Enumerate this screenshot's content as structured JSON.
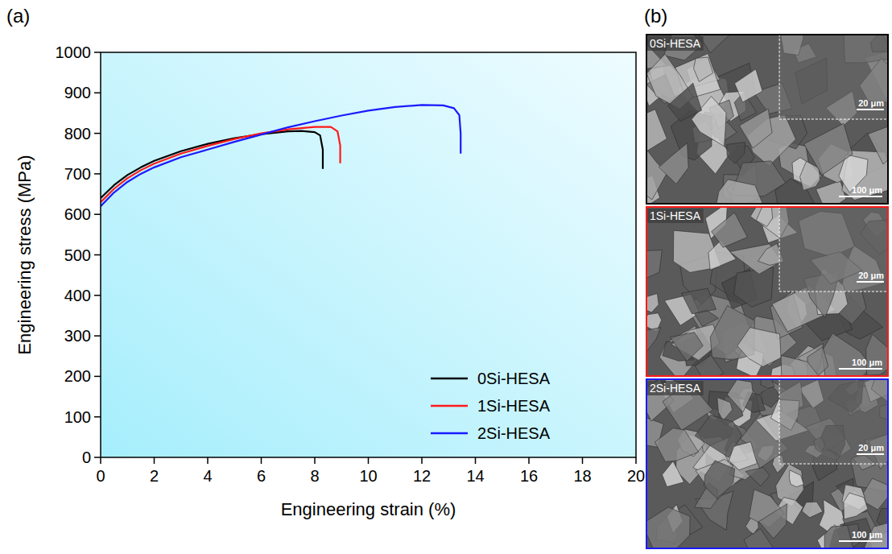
{
  "chart_data": {
    "type": "line",
    "panel_label": "(a)",
    "x_label": "Engineering strain (%)",
    "y_label": "Engineering stress (MPa)",
    "xlim": [
      0,
      20
    ],
    "ylim": [
      0,
      1000
    ],
    "xticks": [
      0,
      2,
      4,
      6,
      8,
      10,
      12,
      14,
      16,
      18,
      20
    ],
    "yticks": [
      0,
      100,
      200,
      300,
      400,
      500,
      600,
      700,
      800,
      900,
      1000
    ],
    "grid": false,
    "legend": "lower right",
    "series": [
      {
        "name": "0Si-HESA",
        "color": "#000000",
        "x": [
          0,
          0.5,
          1,
          1.5,
          2,
          3,
          4,
          5,
          6,
          7,
          7.5,
          8,
          8.2,
          8.3,
          8.3
        ],
        "values": [
          640,
          672,
          697,
          716,
          732,
          756,
          774,
          788,
          798,
          805,
          806,
          803,
          795,
          760,
          712
        ]
      },
      {
        "name": "1Si-HESA",
        "color": "#ff1a1a",
        "x": [
          0,
          0.5,
          1,
          1.5,
          2,
          3,
          4,
          5,
          6,
          7,
          8,
          8.6,
          8.85,
          8.95,
          8.95
        ],
        "values": [
          630,
          663,
          689,
          709,
          725,
          750,
          769,
          786,
          800,
          810,
          816,
          816,
          805,
          770,
          726
        ]
      },
      {
        "name": "2Si-HESA",
        "color": "#1a1aff",
        "x": [
          0,
          0.5,
          1,
          1.5,
          2,
          3,
          4,
          5,
          6,
          7,
          8,
          9,
          10,
          11,
          12,
          12.8,
          13.2,
          13.4,
          13.45,
          13.45
        ],
        "values": [
          620,
          654,
          680,
          700,
          716,
          741,
          760,
          779,
          797,
          815,
          830,
          844,
          856,
          865,
          870,
          869,
          862,
          845,
          800,
          750
        ]
      }
    ]
  },
  "panel_b": {
    "label": "(b)",
    "images": [
      {
        "label": "0Si-HESA",
        "color": "#000000",
        "inset_scale": "20 μm",
        "scale": "100 μm"
      },
      {
        "label": "1Si-HESA",
        "color": "#ff1a1a",
        "inset_scale": "20 μm",
        "scale": "100 μm"
      },
      {
        "label": "2Si-HESA",
        "color": "#1a1aff",
        "inset_scale": "20 μm",
        "scale": "100 μm"
      }
    ]
  }
}
